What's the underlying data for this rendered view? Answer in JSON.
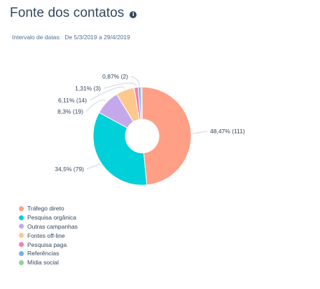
{
  "header": {
    "title": "Fonte dos contatos",
    "info_icon": "info-circle-icon",
    "date_range_label": "Intervalo de datas:",
    "date_range_value": "De 5/3/2019 a 29/4/2019"
  },
  "chart_data": {
    "type": "pie",
    "donut": true,
    "legend_position": "bottom-left",
    "slices": [
      {
        "name": "Tráfego direto",
        "percent": 48.47,
        "count": 111,
        "label": "48,47% (111)",
        "color": "#ff9f85"
      },
      {
        "name": "Pesquisa orgânica",
        "percent": 34.5,
        "count": 79,
        "label": "34,5% (79)",
        "color": "#00d0d9"
      },
      {
        "name": "Outras campanhas",
        "percent": 8.3,
        "count": 19,
        "label": "8,3% (19)",
        "color": "#c5a8ec"
      },
      {
        "name": "Fontes off-line",
        "percent": 6.11,
        "count": 14,
        "label": "6,11% (14)",
        "color": "#fdc88c"
      },
      {
        "name": "Pesquisa paga",
        "percent": 1.31,
        "count": 3,
        "label": "1,31% (3)",
        "color": "#f47fb3"
      },
      {
        "name": "Referências",
        "percent": 0.87,
        "count": 2,
        "label": "0,87% (2)",
        "color": "#6cb2ec"
      },
      {
        "name": "Mídia social",
        "percent": 0.44,
        "count": 1,
        "label": "",
        "color": "#89d692"
      }
    ]
  }
}
